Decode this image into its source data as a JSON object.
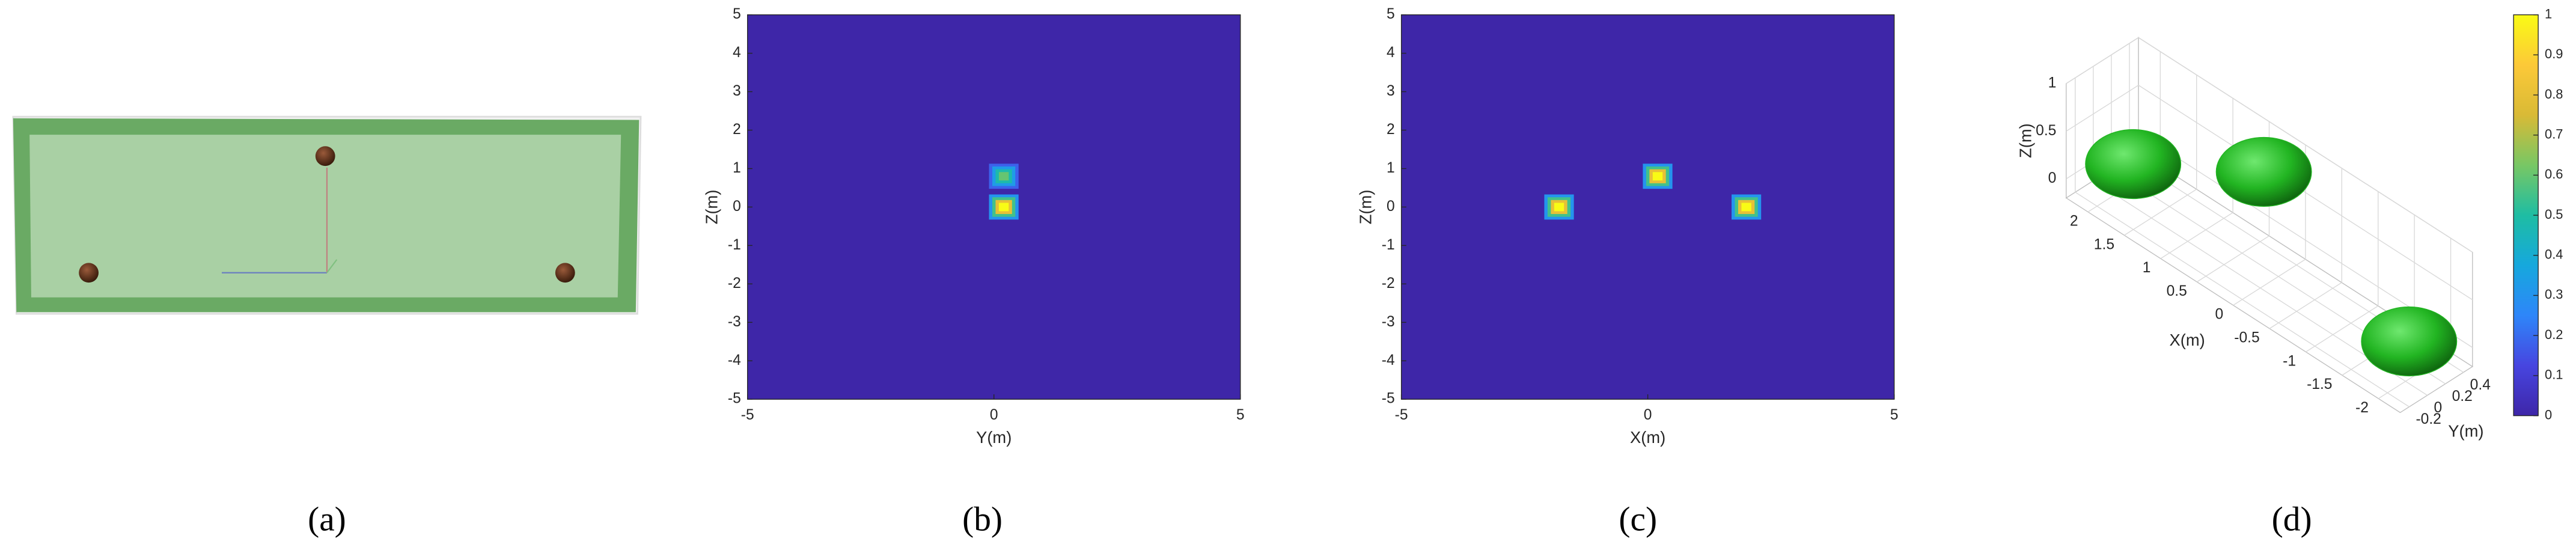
{
  "captions": [
    "(a)",
    "(b)",
    "(c)",
    "(d)"
  ],
  "chart_data": [
    {
      "type": "heatmap",
      "xlabel": "Y(m)",
      "ylabel": "Z(m)",
      "x": [
        0.2,
        0.2
      ],
      "y": [
        0.8,
        0
      ],
      "values": [
        0.6,
        1
      ],
      "xlim": [
        -5,
        5
      ],
      "ylim": [
        -5,
        5
      ],
      "xticks": [
        -5,
        0,
        5
      ],
      "yticks": [
        -5,
        -4,
        -3,
        -2,
        -1,
        0,
        1,
        2,
        3,
        4,
        5
      ],
      "colormap": [
        "#3e26a8",
        "#4745e0",
        "#2e86f9",
        "#16a8dd",
        "#1ebda3",
        "#78c764",
        "#d9ba36",
        "#fcc938",
        "#f9fb15"
      ]
    },
    {
      "type": "heatmap",
      "xlabel": "X(m)",
      "ylabel": "Z(m)",
      "x": [
        -1.8,
        0.2,
        2
      ],
      "y": [
        0,
        0.8,
        0
      ],
      "values": [
        1,
        1,
        1
      ],
      "xlim": [
        -5,
        5
      ],
      "ylim": [
        -5,
        5
      ],
      "xticks": [
        -5,
        0,
        5
      ],
      "yticks": [
        -5,
        -4,
        -3,
        -2,
        -1,
        0,
        1,
        2,
        3,
        4,
        5
      ],
      "colormap": [
        "#3e26a8",
        "#4745e0",
        "#2e86f9",
        "#16a8dd",
        "#1ebda3",
        "#78c764",
        "#d9ba36",
        "#fcc938",
        "#f9fb15"
      ]
    },
    {
      "type": "isosurface3d",
      "xlabel": "X(m)",
      "ylabel": "Y(m)",
      "zlabel": "Z(m)",
      "x": [
        2,
        0.2,
        -1.8
      ],
      "y": [
        0.2,
        0.2,
        0.2
      ],
      "z": [
        0,
        0.8,
        0
      ],
      "color": "#22b522",
      "xlim": [
        -2.3,
        2.3
      ],
      "ylim": [
        -0.3,
        0.5
      ],
      "zlim": [
        -0.2,
        1
      ],
      "xticks": [
        -2,
        -1.5,
        -1,
        -0.5,
        0,
        0.5,
        1,
        1.5,
        2
      ],
      "yticks": [
        -0.2,
        0,
        0.2,
        0.4
      ],
      "zticks": [
        0,
        0.5,
        1
      ],
      "clim": [
        0,
        1
      ],
      "cticks": [
        0,
        0.1,
        0.2,
        0.3,
        0.4,
        0.5,
        0.6,
        0.7,
        0.8,
        0.9,
        1
      ],
      "colormap": [
        "#3e26a8",
        "#4745e0",
        "#2e86f9",
        "#16a8dd",
        "#1ebda3",
        "#78c764",
        "#d9ba36",
        "#fcc938",
        "#f9fb15"
      ]
    }
  ]
}
